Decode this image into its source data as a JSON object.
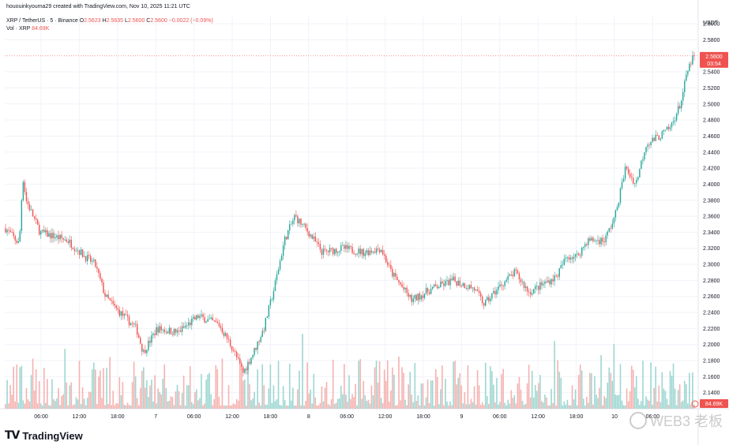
{
  "header": {
    "created_by": "hououinkyouma29 created with TradingView.com, Nov 10, 2025 11:21 UTC"
  },
  "legend": {
    "symbol": "XRP / TetherUS · 5 · Binance",
    "o_label": "O",
    "o_value": "2.5623",
    "h_label": "H",
    "h_value": "2.5635",
    "l_label": "L",
    "l_value": "2.5600",
    "c_label": "C",
    "c_value": "2.5600",
    "change": "−0.0022 (−0.09%)",
    "vol_label": "Vol · XRP",
    "vol_value": "84.69K"
  },
  "colors": {
    "up": "#26a69a",
    "down": "#ef5350",
    "vol_up": "#9fd7d2",
    "vol_down": "#f5b3b1",
    "grid": "#f0f3fa",
    "axis_text": "#131722"
  },
  "price_axis": {
    "currency": "USDT",
    "current_price": "2.5600",
    "countdown": "03:54",
    "volume_badge": "84.69K"
  },
  "footer": {
    "logo_text": "TradingView",
    "watermark": "WEB3 老板"
  },
  "chart_data": {
    "type": "candlestick",
    "title": "XRP / TetherUS · 5 · Binance",
    "ylabel": "USDT",
    "ylim": [
      2.12,
      2.61
    ],
    "y_ticks": [
      "2.6000",
      "2.5800",
      "2.5400",
      "2.5200",
      "2.5000",
      "2.4800",
      "2.4600",
      "2.4400",
      "2.4200",
      "2.4000",
      "2.3800",
      "2.3600",
      "2.3400",
      "2.3200",
      "2.3000",
      "2.2800",
      "2.2600",
      "2.2400",
      "2.2200",
      "2.2000",
      "2.1800",
      "2.1600",
      "2.1400"
    ],
    "x_ticks": [
      "06:00",
      "12:00",
      "18:00",
      "7",
      "06:00",
      "12:00",
      "18:00",
      "8",
      "06:00",
      "12:00",
      "18:00",
      "9",
      "06:00",
      "12:00",
      "18:00",
      "10",
      "06:00"
    ],
    "price_path": [
      {
        "t": 0,
        "p": 2.345
      },
      {
        "t": 0.02,
        "p": 2.325
      },
      {
        "t": 0.025,
        "p": 2.41
      },
      {
        "t": 0.03,
        "p": 2.38
      },
      {
        "t": 0.05,
        "p": 2.34
      },
      {
        "t": 0.09,
        "p": 2.33
      },
      {
        "t": 0.115,
        "p": 2.31
      },
      {
        "t": 0.13,
        "p": 2.3
      },
      {
        "t": 0.145,
        "p": 2.26
      },
      {
        "t": 0.16,
        "p": 2.245
      },
      {
        "t": 0.19,
        "p": 2.22
      },
      {
        "t": 0.2,
        "p": 2.19
      },
      {
        "t": 0.22,
        "p": 2.22
      },
      {
        "t": 0.25,
        "p": 2.215
      },
      {
        "t": 0.28,
        "p": 2.235
      },
      {
        "t": 0.31,
        "p": 2.225
      },
      {
        "t": 0.33,
        "p": 2.195
      },
      {
        "t": 0.345,
        "p": 2.165
      },
      {
        "t": 0.36,
        "p": 2.19
      },
      {
        "t": 0.375,
        "p": 2.22
      },
      {
        "t": 0.39,
        "p": 2.27
      },
      {
        "t": 0.405,
        "p": 2.33
      },
      {
        "t": 0.42,
        "p": 2.36
      },
      {
        "t": 0.44,
        "p": 2.34
      },
      {
        "t": 0.46,
        "p": 2.315
      },
      {
        "t": 0.49,
        "p": 2.32
      },
      {
        "t": 0.52,
        "p": 2.315
      },
      {
        "t": 0.545,
        "p": 2.32
      },
      {
        "t": 0.56,
        "p": 2.29
      },
      {
        "t": 0.59,
        "p": 2.255
      },
      {
        "t": 0.62,
        "p": 2.27
      },
      {
        "t": 0.65,
        "p": 2.28
      },
      {
        "t": 0.68,
        "p": 2.27
      },
      {
        "t": 0.695,
        "p": 2.25
      },
      {
        "t": 0.72,
        "p": 2.275
      },
      {
        "t": 0.74,
        "p": 2.29
      },
      {
        "t": 0.76,
        "p": 2.265
      },
      {
        "t": 0.78,
        "p": 2.275
      },
      {
        "t": 0.8,
        "p": 2.285
      },
      {
        "t": 0.815,
        "p": 2.31
      },
      {
        "t": 0.83,
        "p": 2.31
      },
      {
        "t": 0.845,
        "p": 2.33
      },
      {
        "t": 0.87,
        "p": 2.33
      },
      {
        "t": 0.885,
        "p": 2.36
      },
      {
        "t": 0.9,
        "p": 2.42
      },
      {
        "t": 0.915,
        "p": 2.4
      },
      {
        "t": 0.93,
        "p": 2.45
      },
      {
        "t": 0.95,
        "p": 2.46
      },
      {
        "t": 0.965,
        "p": 2.47
      },
      {
        "t": 0.98,
        "p": 2.5
      },
      {
        "t": 0.99,
        "p": 2.54
      },
      {
        "t": 1.0,
        "p": 2.563
      }
    ],
    "last_price": 2.56,
    "volume_last": "84.69K",
    "grid": true
  }
}
